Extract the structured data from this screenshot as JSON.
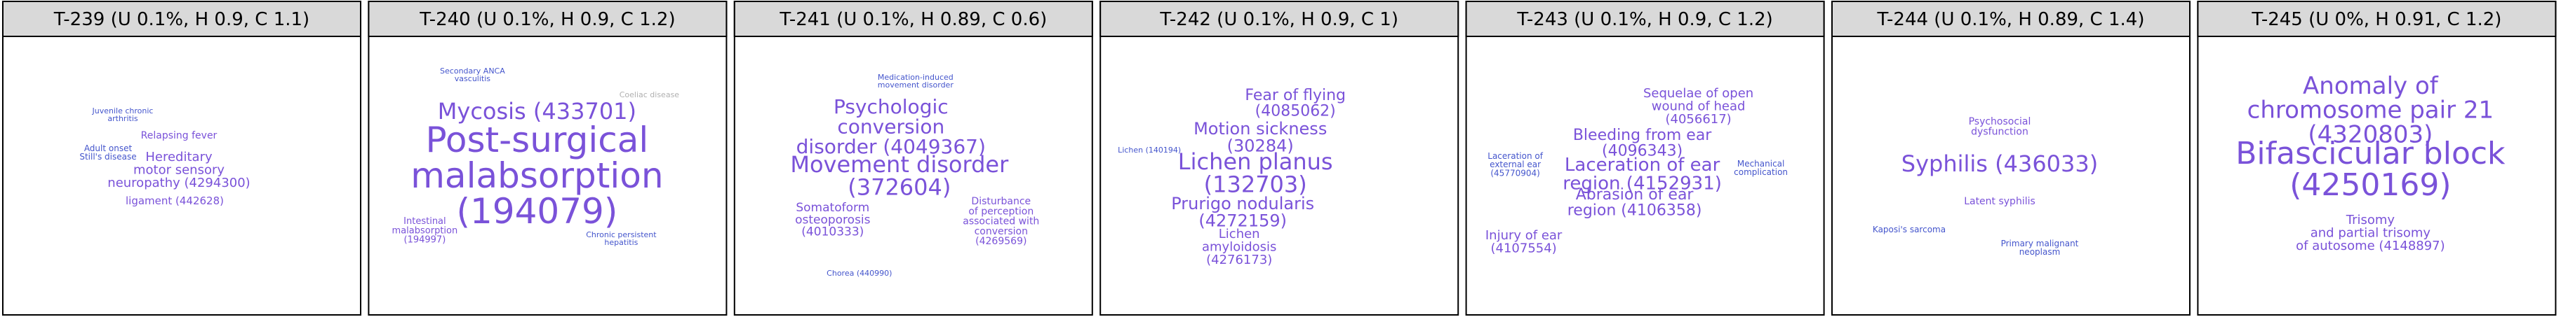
{
  "panels": [
    {
      "title": "T-239 (U 0.1%, H 0.9, C 1.1)",
      "words": [
        {
          "lines": [
            "Hereditary",
            "motor sensory",
            "neuropathy (4294300)"
          ]
        },
        {
          "lines": [
            "Relapsing fever"
          ]
        },
        {
          "lines": [
            "Adult onset",
            "Still's disease"
          ]
        },
        {
          "lines": [
            "ligament (442628)"
          ]
        },
        {
          "lines": [
            "Juvenile chronic",
            "arthritis"
          ]
        }
      ]
    },
    {
      "title": "T-240 (U 0.1%, H 0.9, C 1.2)",
      "words": [
        {
          "lines": [
            "Mycosis (433701)"
          ]
        },
        {
          "lines": [
            "Post-surgical",
            "malabsorption",
            "(194079)"
          ]
        },
        {
          "lines": [
            "Intestinal",
            "malabsorption",
            "(194997)"
          ]
        },
        {
          "lines": [
            "Chronic persistent",
            "hepatitis"
          ]
        },
        {
          "lines": [
            "Secondary ANCA",
            "vasculitis"
          ]
        },
        {
          "lines": [
            "Coeliac disease"
          ]
        }
      ]
    },
    {
      "title": "T-241 (U 0.1%, H 0.89, C 0.6)",
      "words": [
        {
          "lines": [
            "Psychologic",
            "conversion",
            "disorder (4049367)"
          ]
        },
        {
          "lines": [
            "Movement disorder",
            "(372604)"
          ]
        },
        {
          "lines": [
            "Somatoform",
            "osteoporosis",
            "(4010333)"
          ]
        },
        {
          "lines": [
            "Disturbance",
            "of perception",
            "associated with",
            "conversion",
            "(4269569)"
          ]
        },
        {
          "lines": [
            "Chorea (440990)"
          ]
        },
        {
          "lines": [
            "Medication-induced",
            "movement disorder"
          ]
        }
      ]
    },
    {
      "title": "T-242 (U 0.1%, H 0.9, C 1)",
      "words": [
        {
          "lines": [
            "Fear of flying",
            "(4085062)"
          ]
        },
        {
          "lines": [
            "Motion sickness",
            "(30284)"
          ]
        },
        {
          "lines": [
            "Lichen planus",
            "(132703)"
          ]
        },
        {
          "lines": [
            "Prurigo nodularis",
            "(4272159)"
          ]
        },
        {
          "lines": [
            "Lichen",
            "amyloidosis",
            "(4276173)"
          ]
        },
        {
          "lines": [
            "Lichen (140194)"
          ]
        }
      ]
    },
    {
      "title": "T-243 (U 0.1%, H 0.9, C 1.2)",
      "words": [
        {
          "lines": [
            "Sequelae of open",
            "wound of head",
            "(4056617)"
          ]
        },
        {
          "lines": [
            "Bleeding from ear",
            "(4096343)"
          ]
        },
        {
          "lines": [
            "Laceration of ear",
            "region (4152931)"
          ]
        },
        {
          "lines": [
            "Abrasion of ear",
            "region (4106358)"
          ]
        },
        {
          "lines": [
            "Injury of ear",
            "(4107554)"
          ]
        },
        {
          "lines": [
            "Mechanical",
            "complication"
          ]
        },
        {
          "lines": [
            "Laceration of",
            "external ear",
            "(45770904)"
          ]
        }
      ]
    },
    {
      "title": "T-244 (U 0.1%, H 0.89, C 1.4)",
      "words": [
        {
          "lines": [
            "Syphilis (436033)"
          ]
        },
        {
          "lines": [
            "Psychosocial",
            "dysfunction"
          ]
        },
        {
          "lines": [
            "Latent syphilis"
          ]
        },
        {
          "lines": [
            "Primary malignant",
            "neoplasm"
          ]
        },
        {
          "lines": [
            "Kaposi's sarcoma"
          ]
        }
      ]
    },
    {
      "title": "T-245 (U 0%, H 0.91, C 1.2)",
      "words": [
        {
          "lines": [
            "Anomaly of",
            "chromosome pair 21",
            "(4320803)"
          ]
        },
        {
          "lines": [
            "Bifascicular block",
            "(4250169)"
          ]
        },
        {
          "lines": [
            "Trisomy",
            "and partial trisomy",
            "of autosome (4148897)"
          ]
        }
      ]
    }
  ]
}
